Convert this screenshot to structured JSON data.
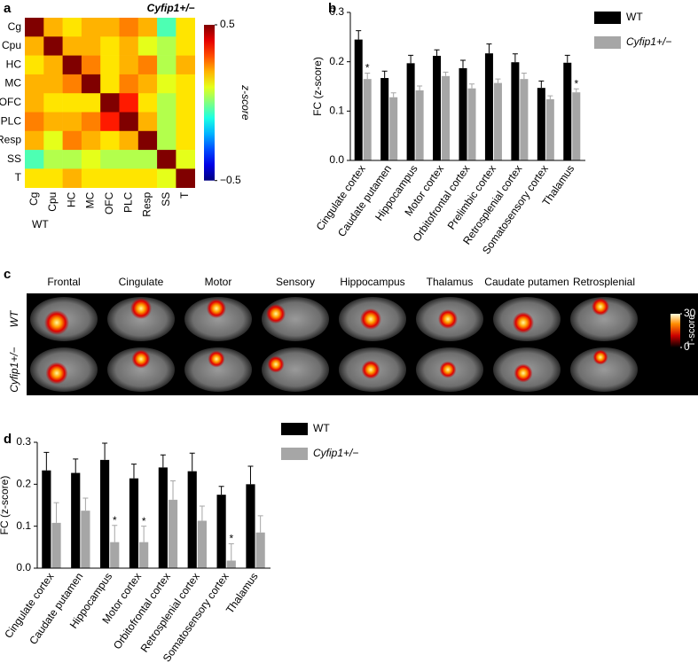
{
  "panel_labels": [
    "a",
    "b",
    "c",
    "d"
  ],
  "chart_data": [
    {
      "type": "heatmap",
      "title": "Cyfip1+/−",
      "xlabel": "WT",
      "categories": [
        "Cg",
        "Cpu",
        "HC",
        "MC",
        "OFC",
        "PLC",
        "Resp",
        "SS",
        "T"
      ],
      "values": [
        [
          0.5,
          0.2,
          0.15,
          0.2,
          0.2,
          0.25,
          0.2,
          -0.05,
          0.15
        ],
        [
          0.2,
          0.5,
          0.2,
          0.2,
          0.15,
          0.2,
          0.1,
          0.05,
          0.15
        ],
        [
          0.15,
          0.2,
          0.5,
          0.25,
          0.15,
          0.2,
          0.25,
          0.05,
          0.2
        ],
        [
          0.2,
          0.2,
          0.25,
          0.5,
          0.15,
          0.25,
          0.2,
          0.1,
          0.15
        ],
        [
          0.2,
          0.15,
          0.15,
          0.15,
          0.5,
          0.35,
          0.15,
          0.05,
          0.15
        ],
        [
          0.25,
          0.2,
          0.2,
          0.25,
          0.35,
          0.5,
          0.2,
          0.05,
          0.15
        ],
        [
          0.2,
          0.1,
          0.25,
          0.2,
          0.15,
          0.2,
          0.5,
          0.05,
          0.15
        ],
        [
          -0.05,
          0.05,
          0.05,
          0.1,
          0.05,
          0.05,
          0.05,
          0.5,
          0.1
        ],
        [
          0.15,
          0.15,
          0.2,
          0.15,
          0.15,
          0.15,
          0.15,
          0.1,
          0.5
        ]
      ],
      "colormap": "jet",
      "clim": [
        -0.5,
        0.5
      ],
      "cticks": [
        0.5,
        {
          "value": -0.5,
          "label": "−0.5"
        }
      ],
      "colorbar_label": "z-score"
    },
    {
      "type": "bar",
      "ylabel": "FC (z-score)",
      "legend": "right",
      "categories": [
        "Cingulate cortex",
        "Caudate putamen",
        "Hippocampus",
        "Motor cortex",
        "Orbitofrontal cortex",
        "Prelimbic cortex",
        "Retrosplenial cortex",
        "Somatosensory cortex",
        "Thalamus"
      ],
      "ylim": [
        0,
        0.3
      ],
      "yticks": [
        {
          "value": 0,
          "label": "0.0"
        },
        0.1,
        0.2,
        0.3
      ],
      "series": [
        {
          "name": "WT",
          "color": "#000000",
          "values": [
            0.245,
            0.167,
            0.197,
            0.212,
            0.187,
            0.217,
            0.199,
            0.147,
            0.198
          ],
          "errors": [
            0.018,
            0.014,
            0.016,
            0.012,
            0.016,
            0.019,
            0.017,
            0.014,
            0.015
          ],
          "significance": [
            null,
            null,
            null,
            null,
            null,
            null,
            null,
            null,
            null
          ]
        },
        {
          "name": "Cyfip1+/−",
          "color": "#a6a6a6",
          "values": [
            0.165,
            0.128,
            0.142,
            0.171,
            0.146,
            0.157,
            0.165,
            0.124,
            0.138
          ],
          "errors": [
            0.012,
            0.009,
            0.009,
            0.008,
            0.009,
            0.008,
            0.012,
            0.007,
            0.007
          ],
          "significance": [
            "*",
            null,
            null,
            null,
            null,
            null,
            null,
            null,
            "*"
          ]
        }
      ]
    },
    {
      "type": "bar",
      "ylabel": "FC (z-score)",
      "legend": "right",
      "categories": [
        "Cingulate cortex",
        "Caudate putamen",
        "Hippocampus",
        "Motor cortex",
        "Orbitofrontal cortex",
        "Retrosplenial cortex",
        "Somatosensory cortex",
        "Thalamus"
      ],
      "ylim": [
        0,
        0.3
      ],
      "yticks": [
        {
          "value": 0,
          "label": "0.0"
        },
        0.1,
        0.2,
        0.3
      ],
      "series": [
        {
          "name": "WT",
          "color": "#000000",
          "values": [
            0.233,
            0.227,
            0.258,
            0.214,
            0.24,
            0.231,
            0.175,
            0.2
          ],
          "errors": [
            0.043,
            0.033,
            0.04,
            0.034,
            0.03,
            0.043,
            0.02,
            0.043
          ],
          "significance": [
            null,
            null,
            null,
            null,
            null,
            null,
            null,
            null
          ]
        },
        {
          "name": "Cyfip1+/−",
          "color": "#a6a6a6",
          "values": [
            0.108,
            0.137,
            0.062,
            0.062,
            0.163,
            0.113,
            0.018,
            0.085
          ],
          "errors": [
            0.048,
            0.03,
            0.04,
            0.038,
            0.045,
            0.035,
            0.04,
            0.04
          ],
          "significance": [
            null,
            null,
            "*",
            "*",
            null,
            null,
            "*",
            null
          ]
        }
      ]
    }
  ],
  "panel_c": {
    "regions": [
      "Frontal",
      "Cingulate",
      "Motor",
      "Sensory",
      "Hippocampus",
      "Thalamus",
      "Caudate putamen",
      "Retrosplenial"
    ],
    "rows": [
      "WT",
      "Cyfip1+/−"
    ],
    "clim": [
      0,
      30
    ],
    "cticks": [
      30,
      0
    ],
    "colorbar_label": "T-score"
  }
}
